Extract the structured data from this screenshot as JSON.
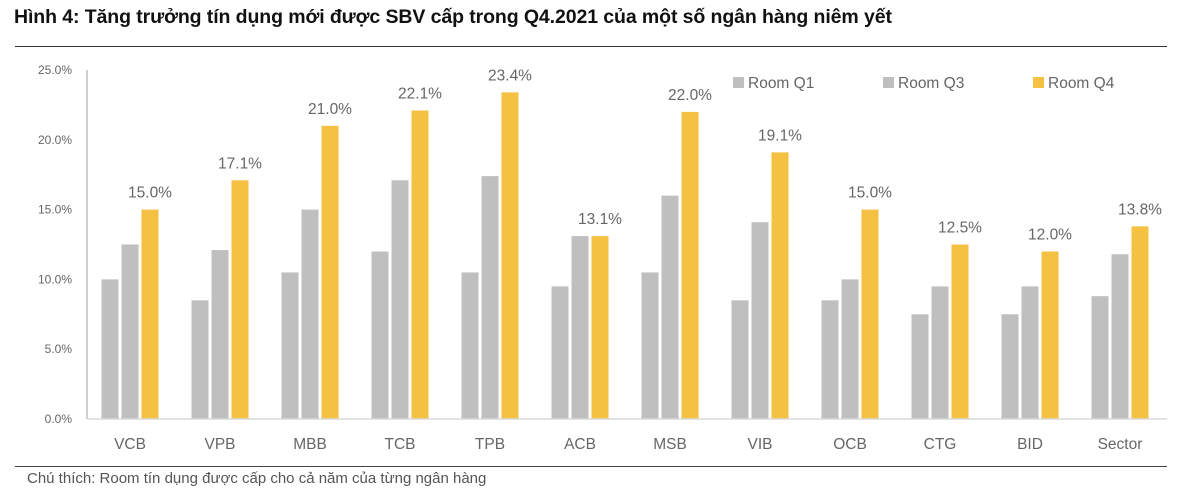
{
  "figure": {
    "title": "Hình 4: Tăng trưởng tín dụng mới được SBV cấp trong Q4.2021 của một số ngân hàng niêm yết",
    "note": "Chú thích: Room tín dụng được cấp cho cả năm của từng ngân hàng"
  },
  "colors": {
    "room_q1": "#bfbfbf",
    "room_q3": "#bfbfbf",
    "room_q4": "#f4c142",
    "axis": "#bfbfbf",
    "text": "#666666"
  },
  "chart_data": {
    "type": "bar",
    "title": "Hình 4: Tăng trưởng tín dụng mới được SBV cấp trong Q4.2021 của một số ngân hàng niêm yết",
    "xlabel": "",
    "ylabel": "",
    "ylim": [
      0,
      25
    ],
    "yticks": [
      "0.0%",
      "5.0%",
      "10.0%",
      "15.0%",
      "20.0%",
      "25.0%"
    ],
    "ytick_values": [
      0,
      5,
      10,
      15,
      20,
      25
    ],
    "grid": false,
    "legend_position": "top-right",
    "categories": [
      "VCB",
      "VPB",
      "MBB",
      "TCB",
      "TPB",
      "ACB",
      "MSB",
      "VIB",
      "OCB",
      "CTG",
      "BID",
      "Sector"
    ],
    "series": [
      {
        "name": "Room Q1",
        "values": [
          10.0,
          8.5,
          10.5,
          12.0,
          10.5,
          9.5,
          10.5,
          8.5,
          8.5,
          7.5,
          7.5,
          8.8
        ],
        "labeled": false
      },
      {
        "name": "Room Q3",
        "values": [
          12.5,
          12.1,
          15.0,
          17.1,
          17.4,
          13.1,
          16.0,
          14.1,
          10.0,
          9.5,
          9.5,
          11.8
        ],
        "labeled": false
      },
      {
        "name": "Room Q4",
        "values": [
          15.0,
          17.1,
          21.0,
          22.1,
          23.4,
          13.1,
          22.0,
          19.1,
          15.0,
          12.5,
          12.0,
          13.8
        ],
        "labeled": true,
        "data_labels": [
          "15.0%",
          "17.1%",
          "21.0%",
          "22.1%",
          "23.4%",
          "13.1%",
          "22.0%",
          "19.1%",
          "15.0%",
          "12.5%",
          "12.0%",
          "13.8%"
        ]
      }
    ]
  }
}
